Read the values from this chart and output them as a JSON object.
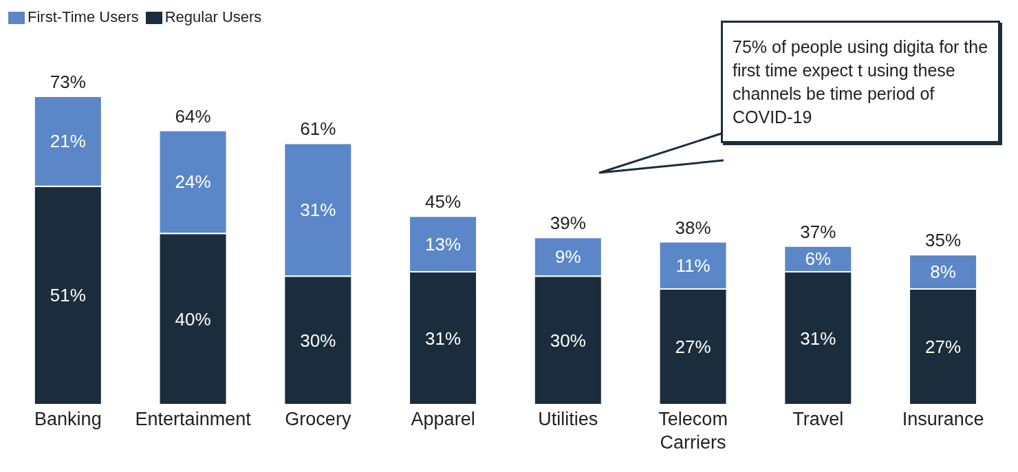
{
  "chart_data": {
    "type": "bar",
    "stacked": true,
    "categories": [
      "Banking",
      "Entertainment",
      "Grocery",
      "Apparel",
      "Utilities",
      "Telecom Carriers",
      "Travel",
      "Insurance"
    ],
    "series": [
      {
        "name": "Regular Users",
        "color": "#1b2d3d",
        "values": [
          51,
          40,
          30,
          31,
          30,
          27,
          31,
          27
        ],
        "value_labels": [
          "51%",
          "40%",
          "30%",
          "31%",
          "30%",
          "27%",
          "31%",
          "27%"
        ]
      },
      {
        "name": "First-Time Users",
        "color": "#5b87c8",
        "values": [
          21,
          24,
          31,
          13,
          9,
          11,
          6,
          8
        ],
        "value_labels": [
          "21%",
          "24%",
          "31%",
          "13%",
          "9%",
          "11%",
          "6%",
          "8%"
        ]
      }
    ],
    "totals": [
      "73%",
      "64%",
      "61%",
      "45%",
      "39%",
      "38%",
      "37%",
      "35%"
    ],
    "annotations": [
      "75% of people using digita for the first time expect t using these channels be time period of COVID-19"
    ],
    "legend": "top left"
  }
}
